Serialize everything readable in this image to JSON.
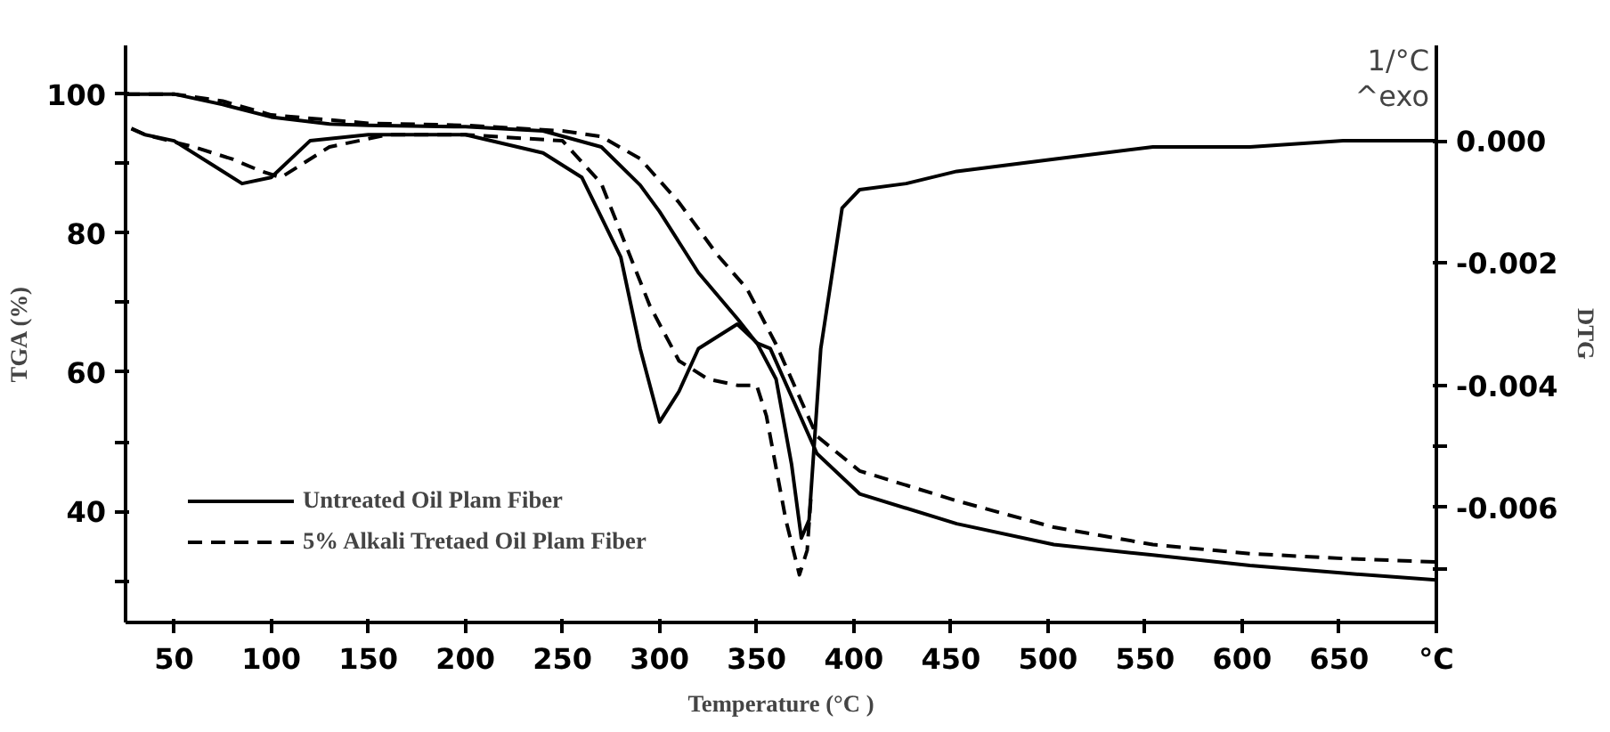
{
  "chart_data": {
    "type": "line",
    "xlabel": "Temperature (°C )",
    "ylabel": "TGA (%)",
    "y2label": "DTG",
    "annotations": [
      "1/°C",
      "^exo"
    ],
    "xlim": [
      25,
      700
    ],
    "xticks": [
      50,
      100,
      150,
      200,
      250,
      300,
      350,
      400,
      450,
      500,
      550,
      600,
      650,
      {
        "value": 700,
        "label": "°C"
      }
    ],
    "ylim": [
      24,
      107
    ],
    "yticks": [
      {
        "value": 30,
        "label": null
      },
      40,
      {
        "value": 50,
        "label": null
      },
      60,
      {
        "value": 70,
        "label": null
      },
      80,
      {
        "value": 90,
        "label": null
      },
      100
    ],
    "y2lim": [
      -0.00788,
      0.00156
    ],
    "y2ticks": [
      {
        "value": -0.007,
        "label": null
      },
      {
        "value": -0.006,
        "label": "-0.006"
      },
      {
        "value": -0.005,
        "label": null
      },
      {
        "value": -0.004,
        "label": "-0.004"
      },
      {
        "value": -0.002,
        "label": "-0.002"
      },
      {
        "value": 0,
        "label": "0.000"
      }
    ],
    "legend": "bottom left",
    "series": [
      {
        "name": "Untreated Oil Plam Fiber",
        "color": "#000000",
        "line_style": "solid",
        "x": [
          25,
          50,
          75,
          100,
          130,
          150,
          200,
          240,
          270,
          290,
          300,
          320,
          340,
          350,
          357,
          381,
          403,
          453,
          503,
          554,
          604,
          652,
          700
        ],
        "values": [
          100,
          100,
          98.5,
          96.7,
          95.7,
          95.5,
          95.3,
          94.7,
          92.4,
          86.9,
          83.1,
          74.3,
          67.7,
          64.2,
          63.4,
          48.3,
          42.5,
          38.2,
          35.2,
          33.7,
          32.2,
          31.1,
          30.1
        ]
      },
      {
        "name": "5% Alkali Tretaed Oil Plam Fiber",
        "color": "#000000",
        "line_style": "dashed",
        "x": [
          25,
          50,
          75,
          100,
          150,
          200,
          250,
          270,
          290,
          310,
          330,
          345,
          360,
          381,
          403,
          453,
          503,
          554,
          604,
          652,
          700
        ],
        "values": [
          100,
          100,
          99,
          97,
          95.8,
          95.5,
          94.7,
          93.9,
          90.7,
          84.4,
          76.8,
          72,
          64,
          50.8,
          45.8,
          41.5,
          37.7,
          35.2,
          33.9,
          33.2,
          32.7
        ]
      },
      {
        "color": "#000000",
        "line_style": "solid",
        "axis": "y2",
        "x": [
          28,
          35,
          50,
          70,
          85,
          100,
          120,
          150,
          200,
          240,
          260,
          280,
          290,
          300,
          310,
          320,
          340,
          350,
          360,
          368,
          373,
          377,
          383,
          394,
          403,
          427,
          453,
          503,
          554,
          604,
          652,
          700
        ],
        "values": [
          0.0002,
          0.0001,
          0,
          -0.0004,
          -0.0007,
          -0.0006,
          0,
          0.0001,
          0.0001,
          -0.0002,
          -0.0006,
          -0.0019,
          -0.0034,
          -0.0046,
          -0.0041,
          -0.0034,
          -0.003,
          -0.0033,
          -0.0039,
          -0.0053,
          -0.0065,
          -0.0062,
          -0.0034,
          -0.0011,
          -0.0008,
          -0.0007,
          -0.0005,
          -0.0003,
          -0.0001,
          -0.0001,
          0,
          0
        ]
      },
      {
        "color": "#000000",
        "line_style": "dashed",
        "axis": "y2",
        "x": [
          28,
          35,
          60,
          80,
          95,
          105,
          130,
          160,
          200,
          250,
          270,
          280,
          295,
          310,
          325,
          340,
          350,
          355,
          365,
          372,
          376,
          378
        ],
        "values": [
          0.0002,
          0.0001,
          -0.0001,
          -0.0003,
          -0.0005,
          -0.0006,
          -0.0001,
          0.0001,
          0.0001,
          0,
          -0.0007,
          -0.0015,
          -0.0027,
          -0.0036,
          -0.0039,
          -0.004,
          -0.004,
          -0.0045,
          -0.0062,
          -0.0071,
          -0.0067,
          -0.0058
        ]
      }
    ]
  }
}
